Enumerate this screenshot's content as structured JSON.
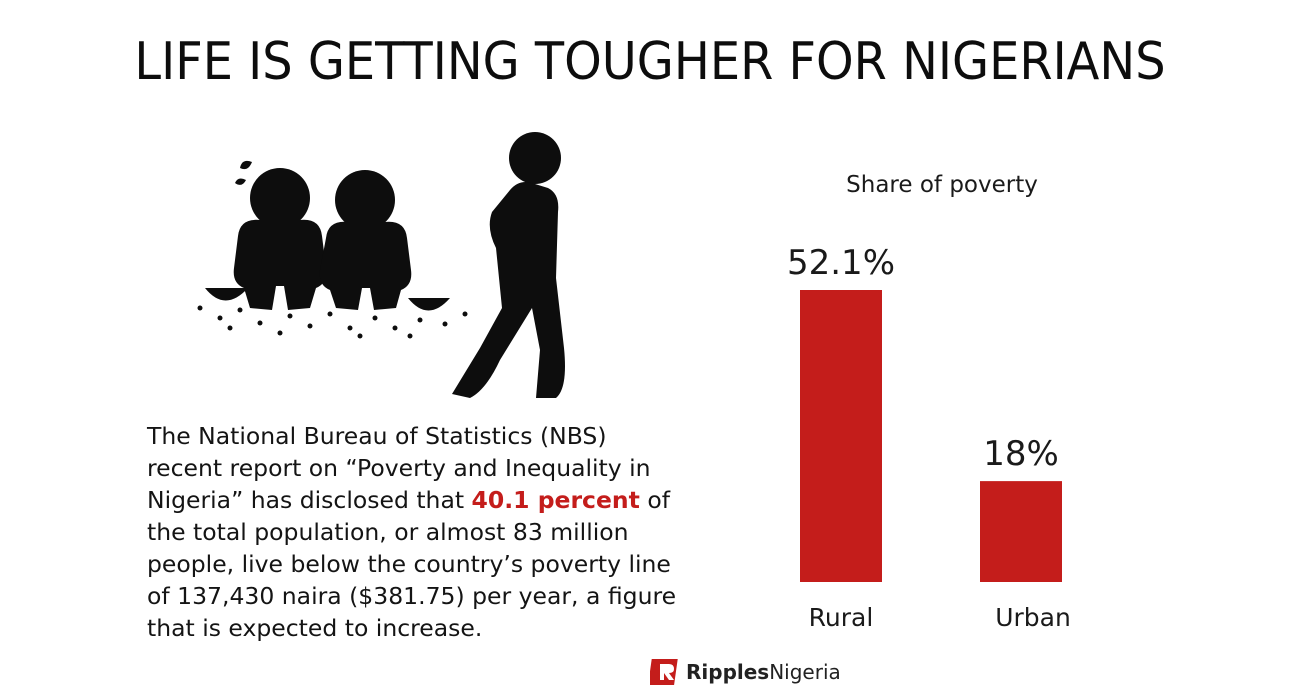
{
  "title": "LIFE IS GETTING TOUGHER FOR NIGERIANS",
  "body": {
    "part1": "The National Bureau of Statistics (NBS) recent report on “Poverty and Inequality in Nigeria” has disclosed that ",
    "highlight": "40.1 percent",
    "part2": " of the total population, or almost 83 million people, live below the country’s poverty line of 137,430 naira ($381.75) per year,  a figure that is expected to increase."
  },
  "logo": {
    "brand_bold": "Ripples",
    "brand_light": "Nigeria"
  },
  "illustration": {
    "icon": "poverty-people-icon"
  },
  "colors": {
    "bar": "#c41d1b",
    "highlight": "#c41d1b",
    "text": "#111111"
  },
  "chart_data": {
    "type": "bar",
    "title": "Share of poverty",
    "categories": [
      "Rural",
      "Urban"
    ],
    "values": [
      52.1,
      18
    ],
    "value_labels": [
      "52.1%",
      "18%"
    ],
    "unit": "%",
    "ylim": [
      0,
      52.1
    ],
    "grid": false,
    "legend": "none"
  }
}
